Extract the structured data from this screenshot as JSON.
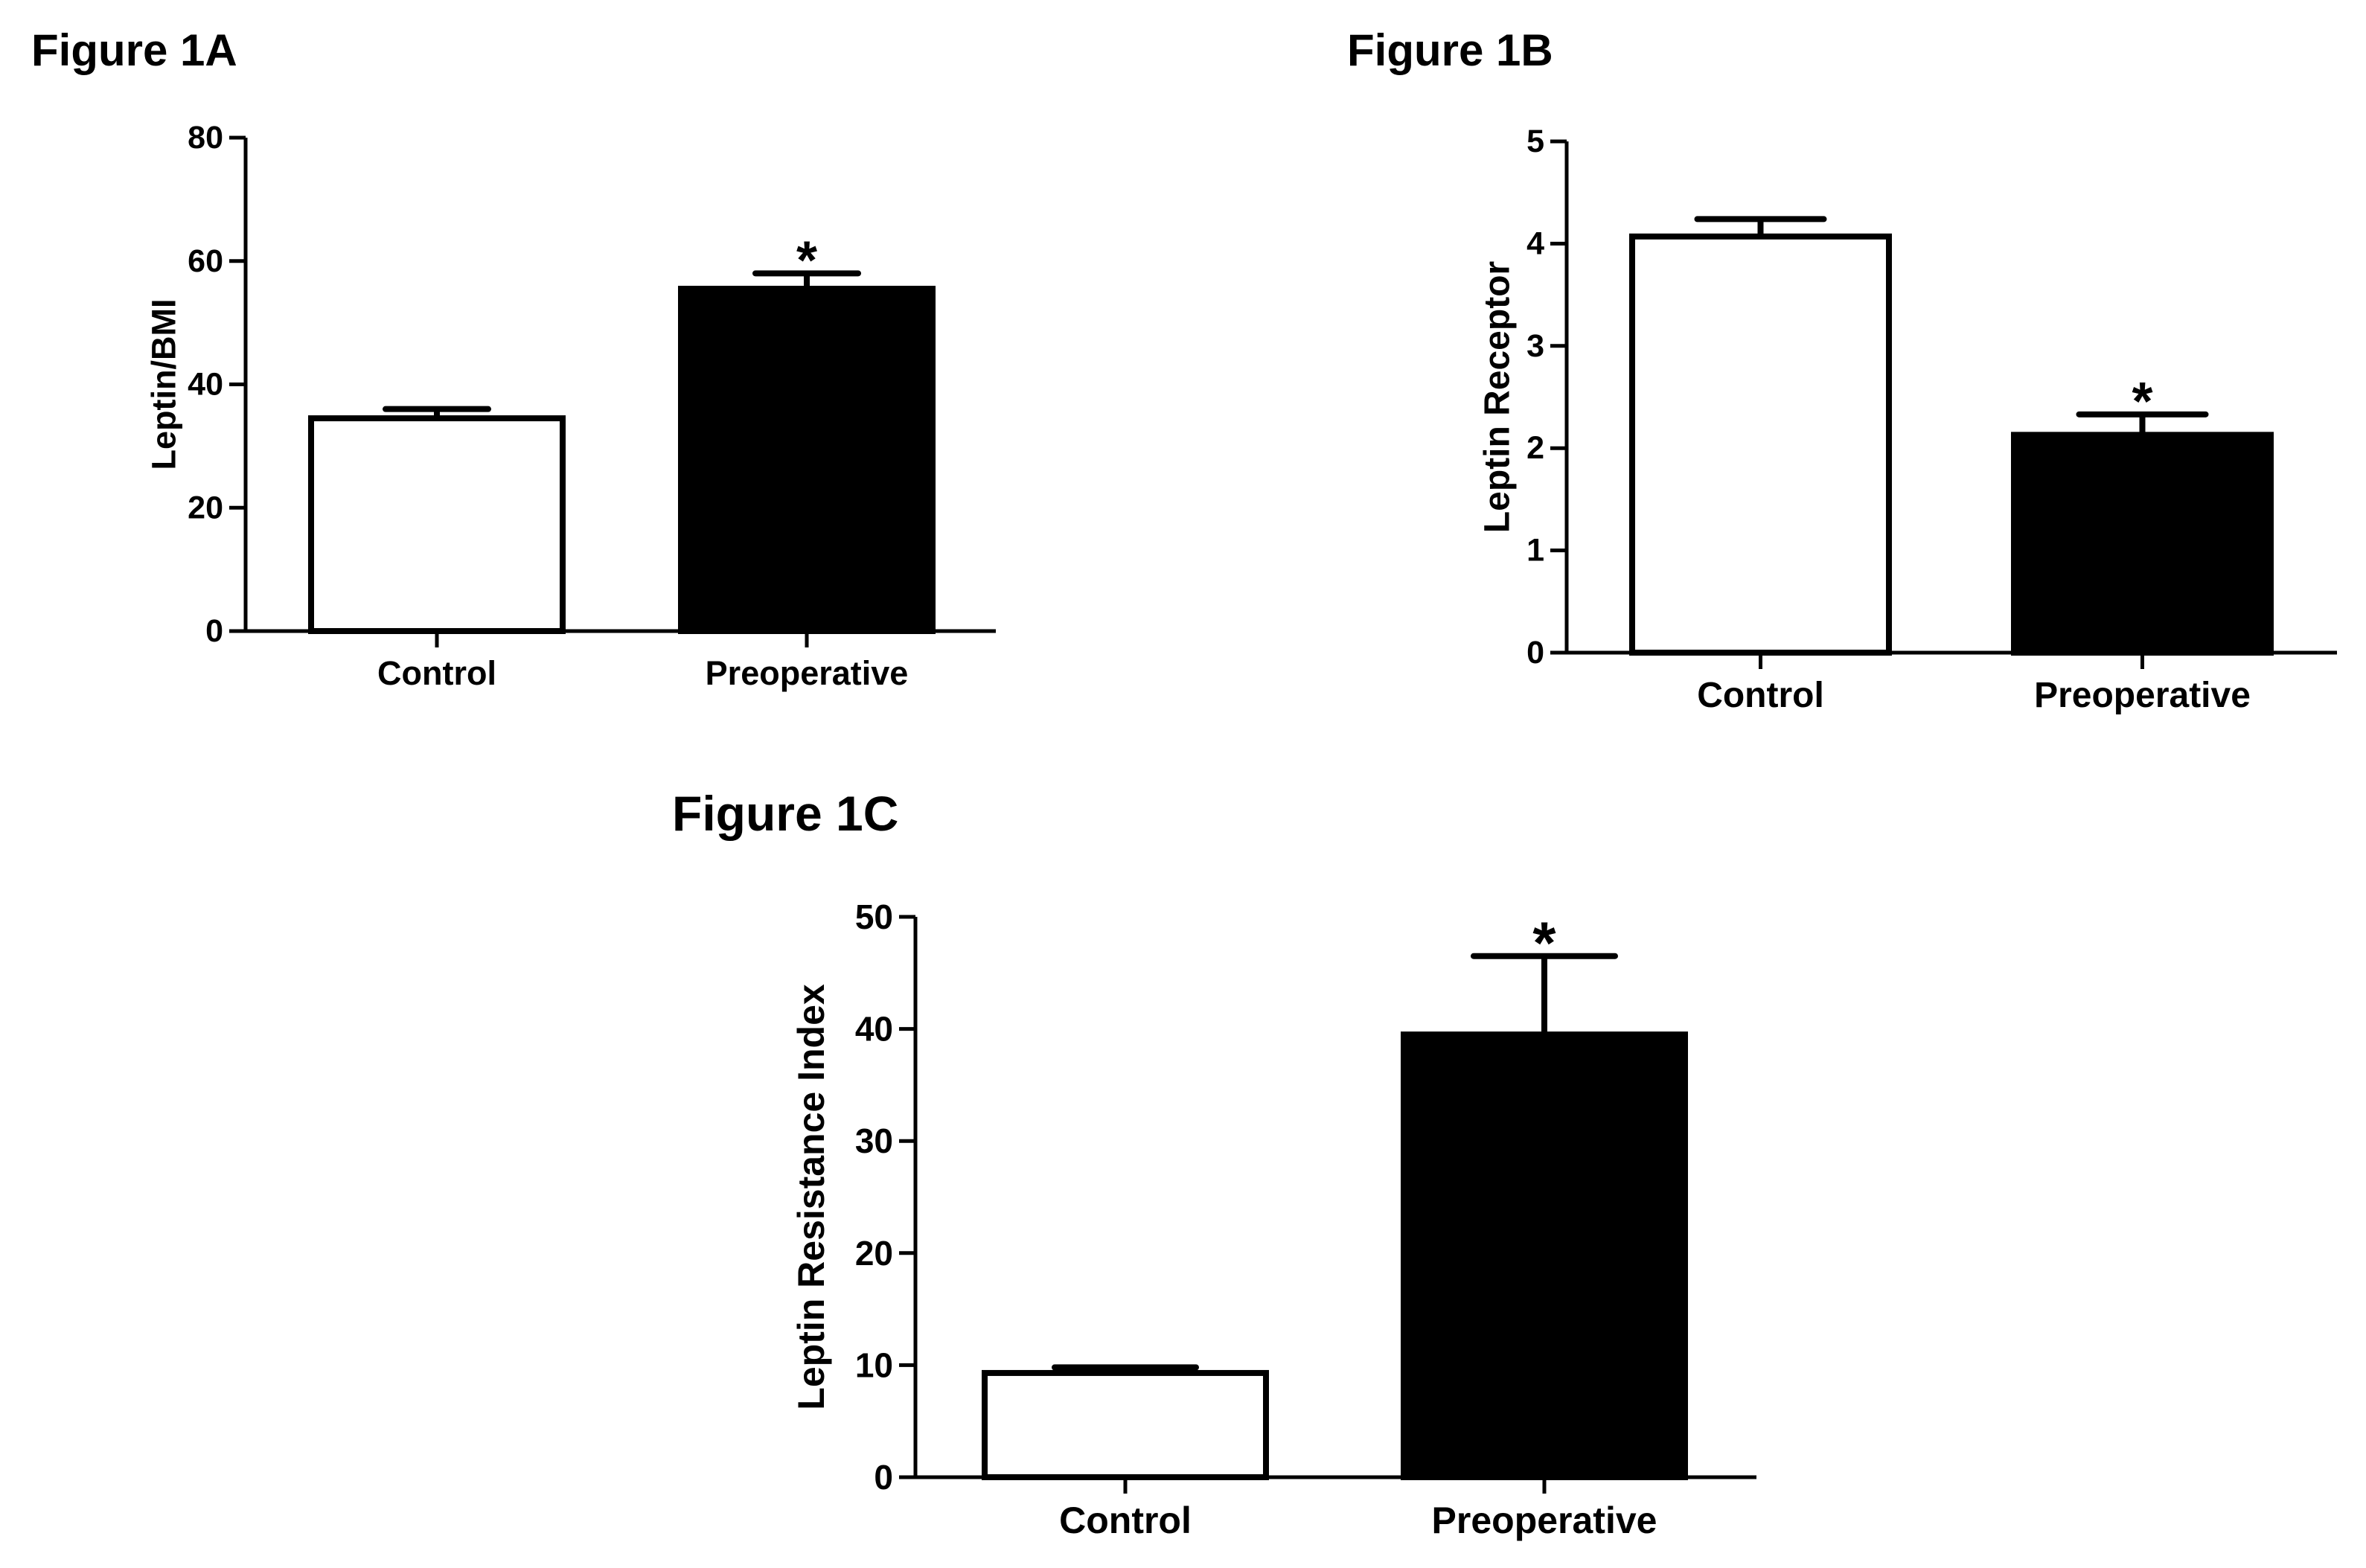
{
  "colors": {
    "control_fill": "#ffffff",
    "preoperative_fill": "#000000",
    "stroke": "#000000"
  },
  "chart_data": [
    {
      "type": "bar",
      "title": "Figure 1A",
      "xlabel": "",
      "ylabel": "Leptin/BMI",
      "ylim": [
        0,
        80
      ],
      "yticks": [
        0,
        20,
        40,
        60,
        80
      ],
      "categories": [
        "Control",
        "Preoperative"
      ],
      "values": [
        34.5,
        55.5
      ],
      "errors": [
        1.5,
        2.5
      ],
      "significance": [
        "",
        "*"
      ],
      "grid": false,
      "legend": "none"
    },
    {
      "type": "bar",
      "title": "Figure 1B",
      "xlabel": "",
      "ylabel": "Leptin Receptor",
      "ylim": [
        0,
        5
      ],
      "yticks": [
        0,
        1,
        2,
        3,
        4,
        5
      ],
      "categories": [
        "Control",
        "Preoperative"
      ],
      "values": [
        4.07,
        2.13
      ],
      "errors": [
        0.17,
        0.2
      ],
      "significance": [
        "",
        "*"
      ],
      "grid": false,
      "legend": "none"
    },
    {
      "type": "bar",
      "title": "Figure 1C",
      "xlabel": "",
      "ylabel": "Leptin Resistance Index",
      "ylim": [
        0,
        50
      ],
      "yticks": [
        0,
        10,
        20,
        30,
        40,
        50
      ],
      "categories": [
        "Control",
        "Preoperative"
      ],
      "values": [
        9.3,
        39.5
      ],
      "errors": [
        0.5,
        7.0
      ],
      "significance": [
        "",
        "*"
      ],
      "grid": false,
      "legend": "none"
    }
  ]
}
